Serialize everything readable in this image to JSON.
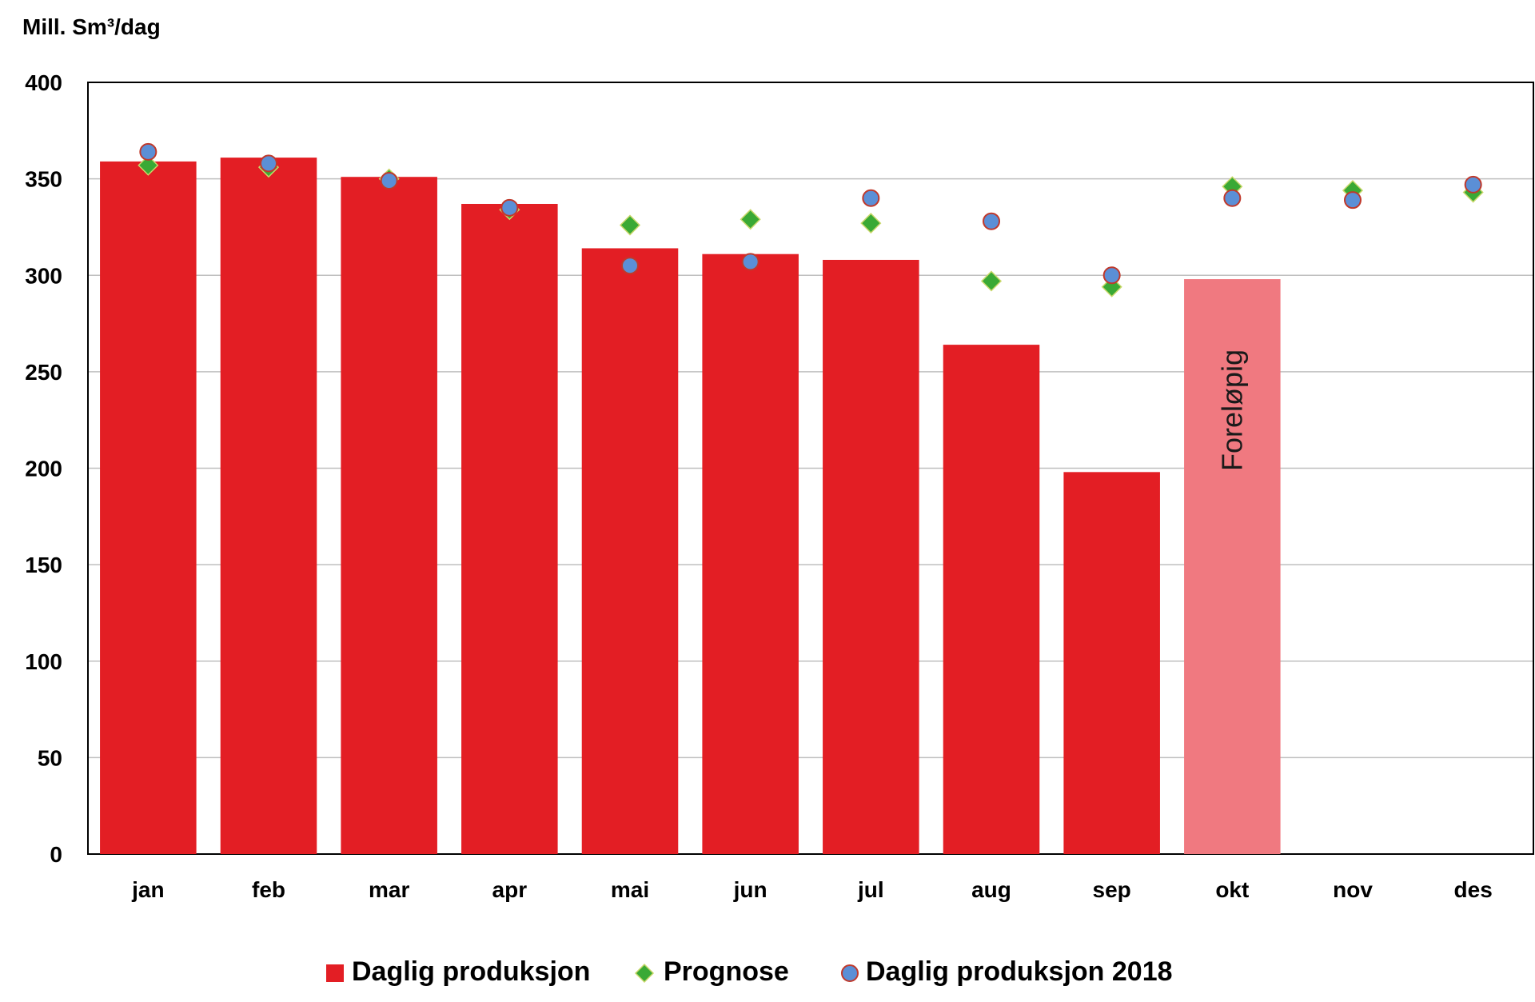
{
  "chart_data": {
    "type": "bar",
    "unit_label": "Mill. Sm³/dag",
    "categories": [
      "jan",
      "feb",
      "mar",
      "apr",
      "mai",
      "jun",
      "jul",
      "aug",
      "sep",
      "okt",
      "nov",
      "des"
    ],
    "ylim": [
      0,
      400
    ],
    "yticks": [
      0,
      50,
      100,
      150,
      200,
      250,
      300,
      350,
      400
    ],
    "grid": true,
    "legend_position": "bottom",
    "series": [
      {
        "name": "Daglig produksjon",
        "kind": "bar",
        "color": "#e31e24",
        "values": [
          359,
          361,
          351,
          337,
          314,
          311,
          308,
          264,
          198,
          298,
          null,
          null
        ],
        "preliminary_color": "#f07980",
        "preliminary_index": 9,
        "preliminary_label": "Foreløpig"
      },
      {
        "name": "Prognose",
        "kind": "marker",
        "marker": "diamond",
        "color": "#3aa935",
        "values": [
          357,
          356,
          350,
          334,
          326,
          329,
          327,
          297,
          294,
          346,
          344,
          343
        ]
      },
      {
        "name": "Daglig produksjon 2018",
        "kind": "marker",
        "marker": "circle",
        "color": "#5b8fd6",
        "values": [
          364,
          358,
          349,
          335,
          305,
          307,
          340,
          328,
          300,
          340,
          339,
          347
        ]
      }
    ]
  }
}
